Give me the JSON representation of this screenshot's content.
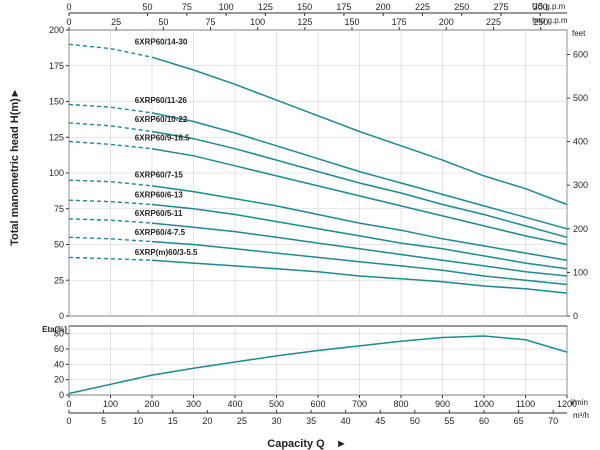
{
  "chart_data": {
    "type": "line",
    "axis_titles": {
      "y_left": "Total manometric head H(m)",
      "y_right_unit": "feet",
      "x": "Capacity Q",
      "x_unit_lmin": "l/min",
      "x_unit_m3h": "m³/h",
      "top_us_unit": "US g.p.m",
      "top_imp_unit": "Imp g.p.m",
      "eff_label": "Eta(%)"
    },
    "x_ticks_lmin": [
      0,
      100,
      200,
      300,
      400,
      500,
      600,
      700,
      800,
      900,
      1000,
      1100,
      1200
    ],
    "x_ticks_m3h": [
      0,
      5,
      10,
      15,
      20,
      25,
      30,
      35,
      40,
      45,
      50,
      55,
      60,
      65,
      70
    ],
    "top_ticks_us": [
      0,
      50,
      75,
      100,
      125,
      150,
      175,
      200,
      225,
      250,
      275,
      300
    ],
    "top_ticks_imp": [
      0,
      25,
      50,
      75,
      100,
      125,
      150,
      175,
      200,
      225,
      250
    ],
    "y_ticks_m": [
      0,
      25,
      50,
      75,
      100,
      125,
      150,
      175,
      200
    ],
    "y_ticks_ft": [
      0,
      100,
      200,
      300,
      400,
      500,
      600
    ],
    "eff_ticks": [
      0,
      20,
      40,
      60,
      80
    ],
    "xlim_lmin": [
      0,
      1200
    ],
    "ylim_m": [
      0,
      200
    ],
    "eff_ylim": [
      0,
      90
    ],
    "head_curves": [
      {
        "name": "6XRP60/14-30",
        "x": [
          0,
          100,
          200,
          300,
          400,
          500,
          600,
          700,
          800,
          900,
          1000,
          1100,
          1200
        ],
        "y": [
          190,
          187,
          181,
          172,
          162,
          151,
          140,
          129,
          119,
          109,
          98,
          89,
          78
        ],
        "dashed_until": 200
      },
      {
        "name": "6XRP60/11-26",
        "x": [
          0,
          100,
          200,
          300,
          400,
          500,
          600,
          700,
          800,
          900,
          1000,
          1100,
          1200
        ],
        "y": [
          148,
          146,
          142,
          136,
          128,
          119,
          110,
          101,
          93,
          85,
          77,
          69,
          61
        ],
        "dashed_until": 200
      },
      {
        "name": "6XRP60/10-22",
        "x": [
          0,
          100,
          200,
          300,
          400,
          500,
          600,
          700,
          800,
          900,
          1000,
          1100,
          1200
        ],
        "y": [
          135,
          133,
          129,
          124,
          117,
          109,
          101,
          93,
          86,
          78,
          71,
          63,
          55
        ],
        "dashed_until": 200
      },
      {
        "name": "6XRP60/9-18.5",
        "x": [
          0,
          100,
          200,
          300,
          400,
          500,
          600,
          700,
          800,
          900,
          1000,
          1100,
          1200
        ],
        "y": [
          122,
          120,
          117,
          112,
          105,
          98,
          91,
          84,
          77,
          70,
          63,
          56,
          50
        ],
        "dashed_until": 200
      },
      {
        "name": "6XRP60/7-15",
        "x": [
          0,
          100,
          200,
          300,
          400,
          500,
          600,
          700,
          800,
          900,
          1000,
          1100,
          1200
        ],
        "y": [
          95,
          94,
          91,
          87,
          82,
          77,
          71,
          65,
          60,
          54,
          49,
          44,
          39
        ],
        "dashed_until": 200
      },
      {
        "name": "6XRP60/6-13",
        "x": [
          0,
          100,
          200,
          300,
          400,
          500,
          600,
          700,
          800,
          900,
          1000,
          1100,
          1200
        ],
        "y": [
          81,
          80,
          78,
          75,
          71,
          66,
          61,
          56,
          51,
          47,
          42,
          37,
          33
        ],
        "dashed_until": 200
      },
      {
        "name": "6XRP60/5-11",
        "x": [
          0,
          100,
          200,
          300,
          400,
          500,
          600,
          700,
          800,
          900,
          1000,
          1100,
          1200
        ],
        "y": [
          68,
          67,
          65,
          62,
          59,
          55,
          51,
          47,
          43,
          39,
          35,
          31,
          28
        ],
        "dashed_until": 200
      },
      {
        "name": "6XRP60/4-7.5",
        "x": [
          0,
          100,
          200,
          300,
          400,
          500,
          600,
          700,
          800,
          900,
          1000,
          1100,
          1200
        ],
        "y": [
          55,
          54,
          52,
          50,
          47,
          44,
          41,
          38,
          35,
          32,
          28,
          25,
          22
        ],
        "dashed_until": 200
      },
      {
        "name": "6XRP(m)60/3-5.5",
        "x": [
          0,
          100,
          200,
          300,
          400,
          500,
          600,
          700,
          800,
          900,
          1000,
          1100,
          1200
        ],
        "y": [
          41,
          40,
          39,
          37,
          35,
          33,
          31,
          28,
          26,
          24,
          21,
          19,
          16
        ],
        "dashed_until": 200
      }
    ],
    "efficiency_curve": {
      "x": [
        0,
        100,
        200,
        300,
        400,
        500,
        600,
        700,
        800,
        900,
        1000,
        1100,
        1200
      ],
      "y": [
        2,
        14,
        26,
        35,
        43,
        51,
        58,
        64,
        70,
        75,
        77,
        72,
        56
      ]
    },
    "colors": {
      "curve": "#1a8a96",
      "grid": "#d0d0d0",
      "axis": "#333333"
    }
  }
}
